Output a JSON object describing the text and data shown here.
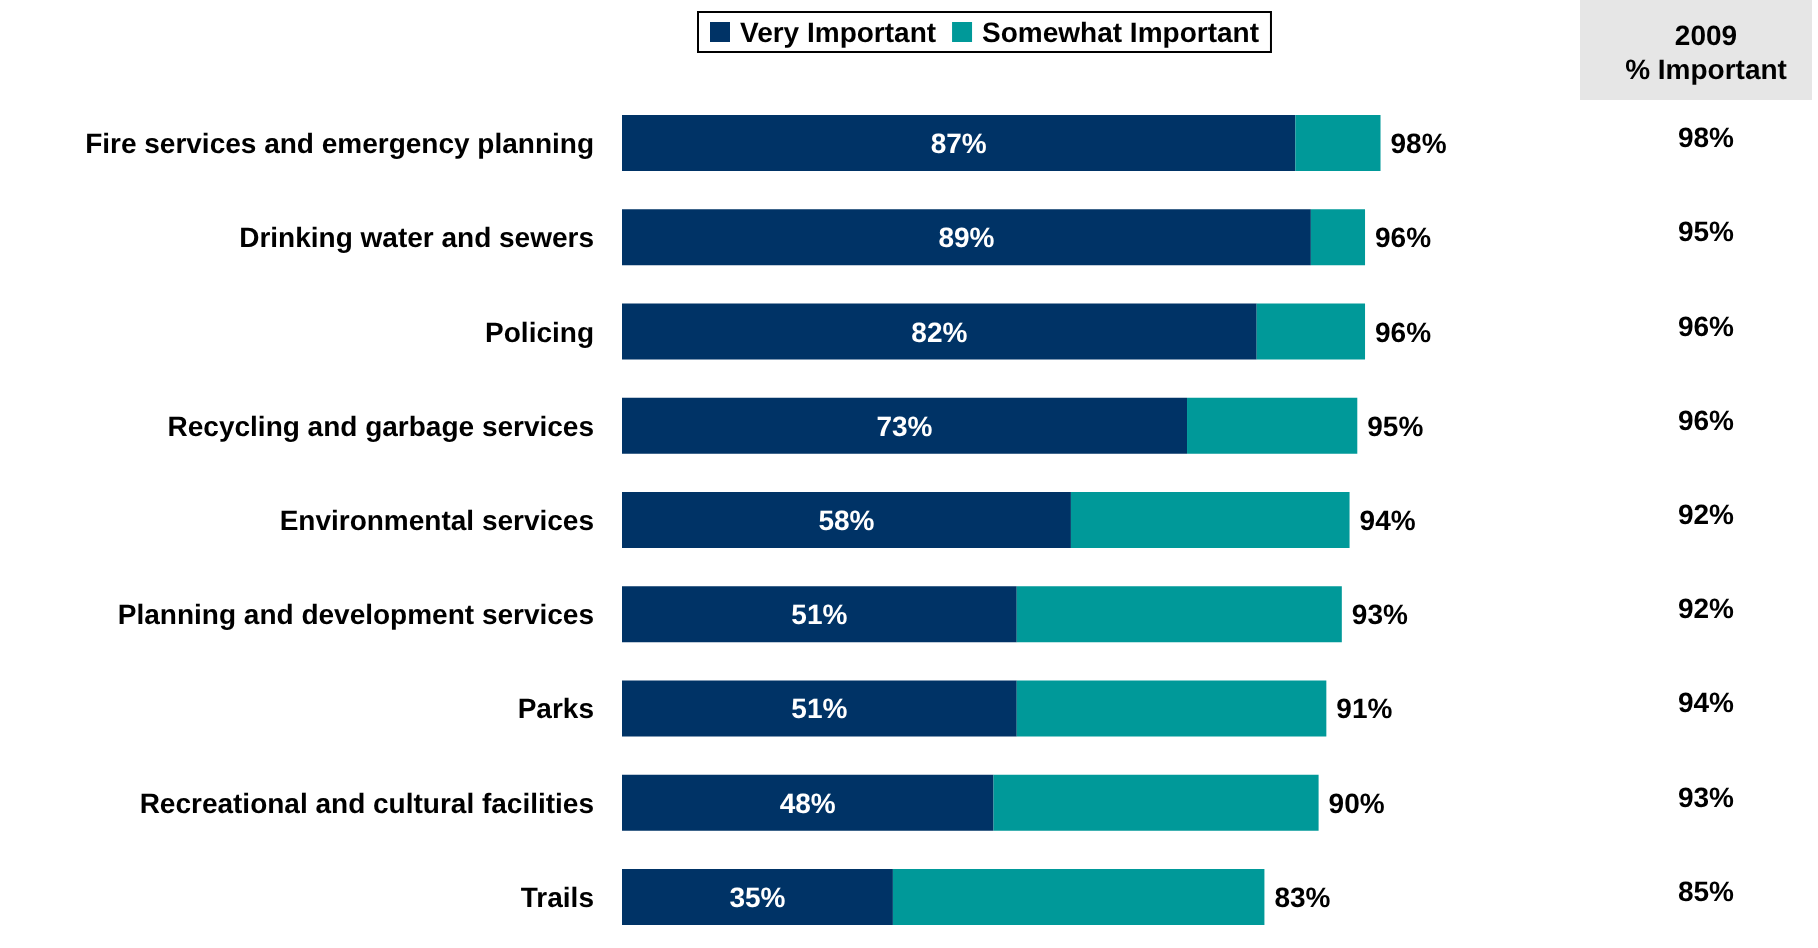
{
  "chart_data": {
    "type": "bar",
    "orientation": "horizontal",
    "stacked": true,
    "tick_labels": "y",
    "legend": "top",
    "categories": [
      "Fire services and emergency planning",
      "Drinking water and sewers",
      "Policing",
      "Recycling and garbage services",
      "Environmental services",
      "Planning and development services",
      "Parks",
      "Recreational and cultural facilities",
      "Trails"
    ],
    "series": [
      {
        "name": "Very Important",
        "color": "#003366",
        "values": [
          87,
          89,
          82,
          73,
          58,
          51,
          51,
          48,
          35
        ],
        "value_labels": [
          "87%",
          "89%",
          "82%",
          "73%",
          "58%",
          "51%",
          "51%",
          "48%",
          "35%"
        ]
      },
      {
        "name": "Somewhat Important",
        "color": "#009999",
        "values": [
          11,
          7,
          14,
          22,
          36,
          42,
          40,
          42,
          48
        ]
      }
    ],
    "totals": [
      "98%",
      "96%",
      "96%",
      "95%",
      "94%",
      "93%",
      "91%",
      "90%",
      "83%"
    ],
    "annotations": [
      "2009\n% Important",
      "98%",
      "95%",
      "96%",
      "96%",
      "92%",
      "92%",
      "94%",
      "93%",
      "85%"
    ]
  }
}
